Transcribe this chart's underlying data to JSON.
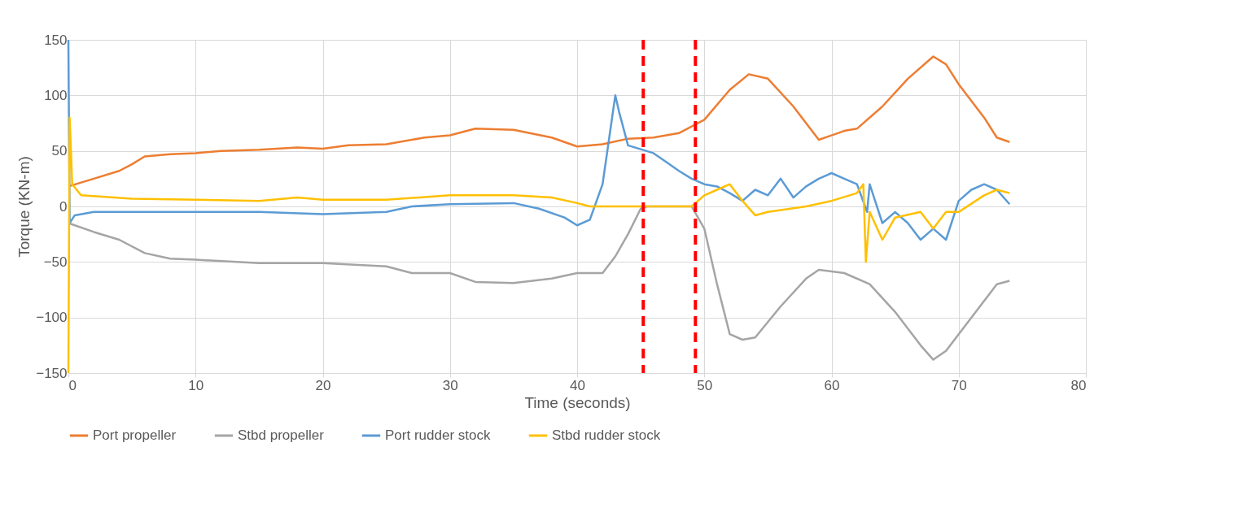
{
  "chart_data": {
    "type": "line",
    "xlabel": "Time (seconds)",
    "ylabel": "Torque (KN-m)",
    "xlim": [
      0,
      80
    ],
    "xticks": [
      0,
      10,
      20,
      30,
      40,
      50,
      60,
      70,
      80
    ],
    "ylim": [
      -150,
      150
    ],
    "yticks": [
      -150,
      -100,
      -50,
      0,
      50,
      100,
      150
    ],
    "grid": true,
    "legend": "bottom",
    "line_style": "solid",
    "marker": "none",
    "series": [
      {
        "name": "Port propeller",
        "color": "#ed7d31",
        "x": [
          0,
          2,
          4,
          5,
          6,
          8,
          10,
          12,
          15,
          18,
          20,
          22,
          25,
          28,
          30,
          32,
          35,
          38,
          40,
          42,
          44,
          46,
          48,
          50,
          52,
          53.5,
          55,
          57,
          59,
          61,
          62,
          64,
          66,
          68,
          69,
          70,
          72,
          73,
          74
        ],
        "values": [
          18,
          25,
          32,
          38,
          45,
          47,
          48,
          50,
          51,
          53,
          52,
          55,
          56,
          62,
          64,
          70,
          69,
          62,
          54,
          56,
          61,
          62,
          66,
          78,
          105,
          119,
          115,
          90,
          60,
          68,
          70,
          90,
          115,
          135,
          128,
          110,
          80,
          62,
          58
        ]
      },
      {
        "name": "Stbd propeller",
        "color": "#a5a5a5",
        "x": [
          0,
          2,
          4,
          6,
          8,
          10,
          15,
          20,
          25,
          27,
          30,
          32,
          35,
          38,
          40,
          42,
          43,
          44,
          45,
          45.5,
          49,
          50,
          51,
          52,
          53,
          54,
          56,
          58,
          59,
          61,
          63,
          65,
          67,
          68,
          69,
          71,
          73,
          74
        ],
        "values": [
          -15,
          -23,
          -30,
          -42,
          -47,
          -48,
          -51,
          -51,
          -54,
          -60,
          -60,
          -68,
          -69,
          -65,
          -60,
          -60,
          -45,
          -25,
          -2,
          0,
          0,
          -20,
          -70,
          -115,
          -120,
          -118,
          -90,
          -65,
          -57,
          -60,
          -70,
          -95,
          -125,
          -138,
          -130,
          -100,
          -70,
          -67
        ]
      },
      {
        "name": "Port rudder stock",
        "color": "#5b9bd5",
        "x": [
          0,
          0.1,
          0.5,
          2,
          5,
          10,
          15,
          20,
          25,
          27,
          30,
          35,
          37,
          39,
          40,
          41,
          42,
          42.5,
          43,
          43.3,
          44,
          46,
          47,
          48,
          49,
          50,
          51,
          52,
          53,
          54,
          55,
          56,
          57,
          58,
          59,
          60,
          61,
          62,
          62.8,
          63,
          64,
          65,
          66,
          67,
          68,
          69,
          70,
          71,
          72,
          73,
          74
        ],
        "values": [
          150,
          -15,
          -8,
          -5,
          -5,
          -5,
          -5,
          -7,
          -5,
          0,
          2,
          3,
          -2,
          -10,
          -17,
          -12,
          20,
          60,
          100,
          85,
          55,
          48,
          40,
          32,
          25,
          20,
          18,
          12,
          5,
          15,
          10,
          25,
          8,
          18,
          25,
          30,
          25,
          20,
          -5,
          20,
          -15,
          -5,
          -15,
          -30,
          -20,
          -30,
          5,
          15,
          20,
          15,
          2
        ]
      },
      {
        "name": "Stbd rudder stock",
        "color": "#ffc000",
        "x": [
          0,
          0.1,
          0.3,
          1,
          5,
          10,
          15,
          18,
          20,
          25,
          30,
          35,
          38,
          40,
          41,
          45,
          49,
          50,
          51,
          52,
          53,
          54,
          55,
          58,
          60,
          62,
          62.5,
          62.7,
          63,
          64,
          65,
          67,
          68,
          69,
          70,
          72,
          73,
          74
        ],
        "values": [
          -150,
          80,
          20,
          10,
          7,
          6,
          5,
          8,
          6,
          6,
          10,
          10,
          8,
          3,
          0,
          0,
          0,
          10,
          15,
          20,
          5,
          -8,
          -5,
          0,
          5,
          12,
          20,
          -50,
          -5,
          -30,
          -10,
          -5,
          -20,
          -5,
          -5,
          10,
          15,
          12
        ]
      }
    ],
    "ref_lines": [
      {
        "axis": "x",
        "value": 45.2,
        "color": "#ff0000",
        "line_style": "dashed"
      },
      {
        "axis": "x",
        "value": 49.3,
        "color": "#ff0000",
        "line_style": "dashed"
      }
    ]
  }
}
